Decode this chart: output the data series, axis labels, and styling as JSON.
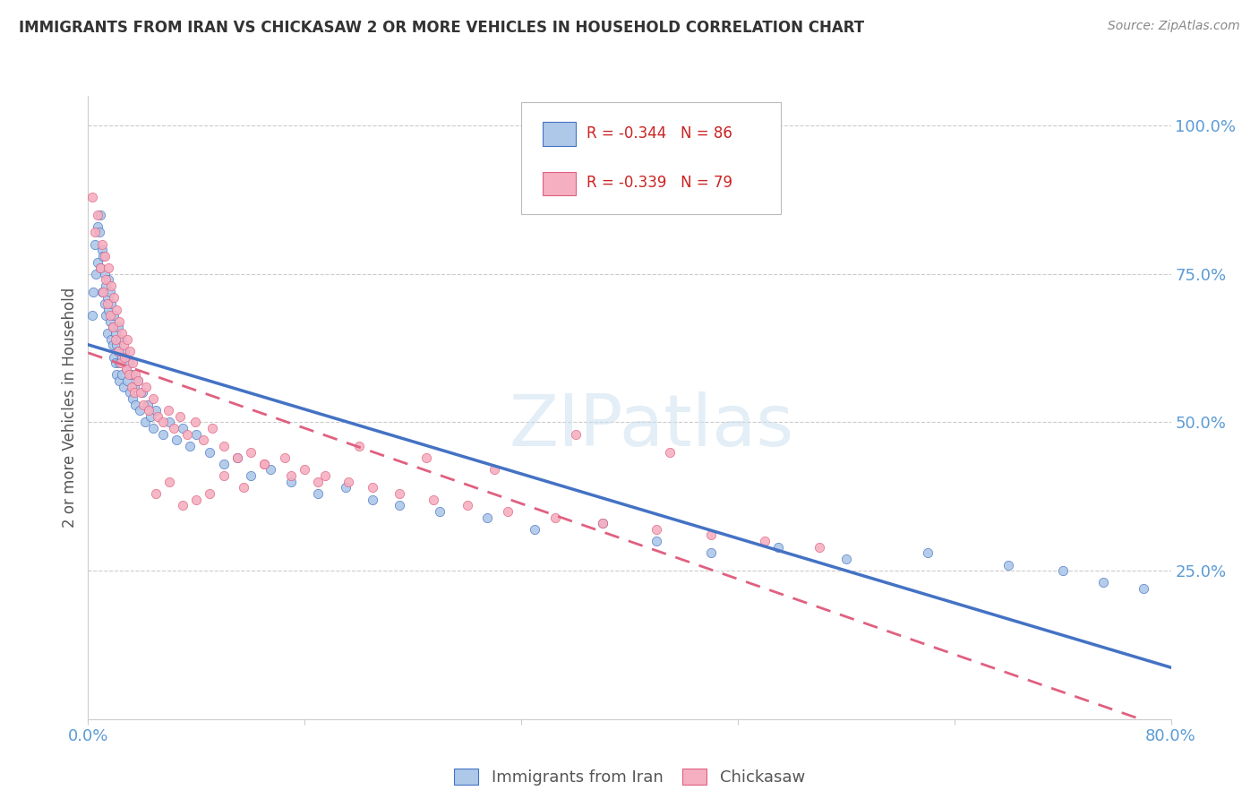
{
  "title": "IMMIGRANTS FROM IRAN VS CHICKASAW 2 OR MORE VEHICLES IN HOUSEHOLD CORRELATION CHART",
  "source": "Source: ZipAtlas.com",
  "ylabel": "2 or more Vehicles in Household",
  "x_min": 0.0,
  "x_max": 0.8,
  "y_min": 0.0,
  "y_max": 1.05,
  "x_ticks": [
    0.0,
    0.16,
    0.32,
    0.48,
    0.64,
    0.8
  ],
  "x_tick_labels": [
    "0.0%",
    "",
    "",
    "",
    "",
    "80.0%"
  ],
  "y_tick_labels_right": [
    "25.0%",
    "50.0%",
    "75.0%",
    "100.0%"
  ],
  "y_ticks_right": [
    0.25,
    0.5,
    0.75,
    1.0
  ],
  "legend1_R": "-0.344",
  "legend1_N": "86",
  "legend2_R": "-0.339",
  "legend2_N": "79",
  "color_iran": "#adc8e8",
  "color_chickasaw": "#f5afc0",
  "color_iran_line": "#4472c4",
  "color_chickasaw_line": "#e06080",
  "legend_label1": "Immigrants from Iran",
  "legend_label2": "Chickasaw",
  "watermark": "ZIPatlas",
  "iran_scatter_x": [
    0.003,
    0.004,
    0.005,
    0.006,
    0.007,
    0.007,
    0.008,
    0.009,
    0.009,
    0.01,
    0.01,
    0.011,
    0.012,
    0.012,
    0.013,
    0.013,
    0.014,
    0.014,
    0.015,
    0.015,
    0.016,
    0.016,
    0.017,
    0.017,
    0.018,
    0.018,
    0.019,
    0.019,
    0.02,
    0.02,
    0.021,
    0.021,
    0.022,
    0.022,
    0.023,
    0.023,
    0.024,
    0.025,
    0.025,
    0.026,
    0.027,
    0.028,
    0.029,
    0.03,
    0.031,
    0.032,
    0.033,
    0.034,
    0.035,
    0.037,
    0.038,
    0.04,
    0.042,
    0.044,
    0.046,
    0.048,
    0.05,
    0.055,
    0.06,
    0.065,
    0.07,
    0.075,
    0.08,
    0.09,
    0.1,
    0.11,
    0.12,
    0.135,
    0.15,
    0.17,
    0.19,
    0.21,
    0.23,
    0.26,
    0.295,
    0.33,
    0.38,
    0.42,
    0.46,
    0.51,
    0.56,
    0.62,
    0.68,
    0.72,
    0.75,
    0.78
  ],
  "iran_scatter_y": [
    0.68,
    0.72,
    0.8,
    0.75,
    0.83,
    0.77,
    0.82,
    0.85,
    0.76,
    0.79,
    0.72,
    0.78,
    0.7,
    0.75,
    0.73,
    0.68,
    0.71,
    0.65,
    0.74,
    0.69,
    0.67,
    0.72,
    0.64,
    0.7,
    0.66,
    0.63,
    0.68,
    0.61,
    0.65,
    0.6,
    0.63,
    0.58,
    0.66,
    0.62,
    0.6,
    0.57,
    0.64,
    0.61,
    0.58,
    0.56,
    0.62,
    0.59,
    0.57,
    0.6,
    0.55,
    0.58,
    0.54,
    0.56,
    0.53,
    0.57,
    0.52,
    0.55,
    0.5,
    0.53,
    0.51,
    0.49,
    0.52,
    0.48,
    0.5,
    0.47,
    0.49,
    0.46,
    0.48,
    0.45,
    0.43,
    0.44,
    0.41,
    0.42,
    0.4,
    0.38,
    0.39,
    0.37,
    0.36,
    0.35,
    0.34,
    0.32,
    0.33,
    0.3,
    0.28,
    0.29,
    0.27,
    0.28,
    0.26,
    0.25,
    0.23,
    0.22
  ],
  "chickasaw_scatter_x": [
    0.003,
    0.005,
    0.007,
    0.009,
    0.01,
    0.011,
    0.012,
    0.013,
    0.014,
    0.015,
    0.016,
    0.017,
    0.018,
    0.019,
    0.02,
    0.021,
    0.022,
    0.023,
    0.024,
    0.025,
    0.026,
    0.027,
    0.028,
    0.029,
    0.03,
    0.031,
    0.032,
    0.033,
    0.034,
    0.035,
    0.037,
    0.039,
    0.041,
    0.043,
    0.045,
    0.048,
    0.051,
    0.055,
    0.059,
    0.063,
    0.068,
    0.073,
    0.079,
    0.085,
    0.092,
    0.1,
    0.11,
    0.12,
    0.13,
    0.145,
    0.16,
    0.175,
    0.192,
    0.21,
    0.23,
    0.255,
    0.28,
    0.31,
    0.345,
    0.38,
    0.42,
    0.46,
    0.5,
    0.54,
    0.43,
    0.36,
    0.3,
    0.25,
    0.2,
    0.17,
    0.15,
    0.13,
    0.115,
    0.1,
    0.09,
    0.08,
    0.07,
    0.06,
    0.05
  ],
  "chickasaw_scatter_y": [
    0.88,
    0.82,
    0.85,
    0.76,
    0.8,
    0.72,
    0.78,
    0.74,
    0.7,
    0.76,
    0.68,
    0.73,
    0.66,
    0.71,
    0.64,
    0.69,
    0.62,
    0.67,
    0.6,
    0.65,
    0.63,
    0.61,
    0.59,
    0.64,
    0.58,
    0.62,
    0.56,
    0.6,
    0.55,
    0.58,
    0.57,
    0.55,
    0.53,
    0.56,
    0.52,
    0.54,
    0.51,
    0.5,
    0.52,
    0.49,
    0.51,
    0.48,
    0.5,
    0.47,
    0.49,
    0.46,
    0.44,
    0.45,
    0.43,
    0.44,
    0.42,
    0.41,
    0.4,
    0.39,
    0.38,
    0.37,
    0.36,
    0.35,
    0.34,
    0.33,
    0.32,
    0.31,
    0.3,
    0.29,
    0.45,
    0.48,
    0.42,
    0.44,
    0.46,
    0.4,
    0.41,
    0.43,
    0.39,
    0.41,
    0.38,
    0.37,
    0.36,
    0.4,
    0.38
  ],
  "background_color": "#ffffff",
  "grid_color": "#cccccc",
  "axis_color": "#cccccc",
  "title_color": "#333333",
  "right_axis_color": "#5b9bd5",
  "bottom_axis_color": "#5b9bd5"
}
